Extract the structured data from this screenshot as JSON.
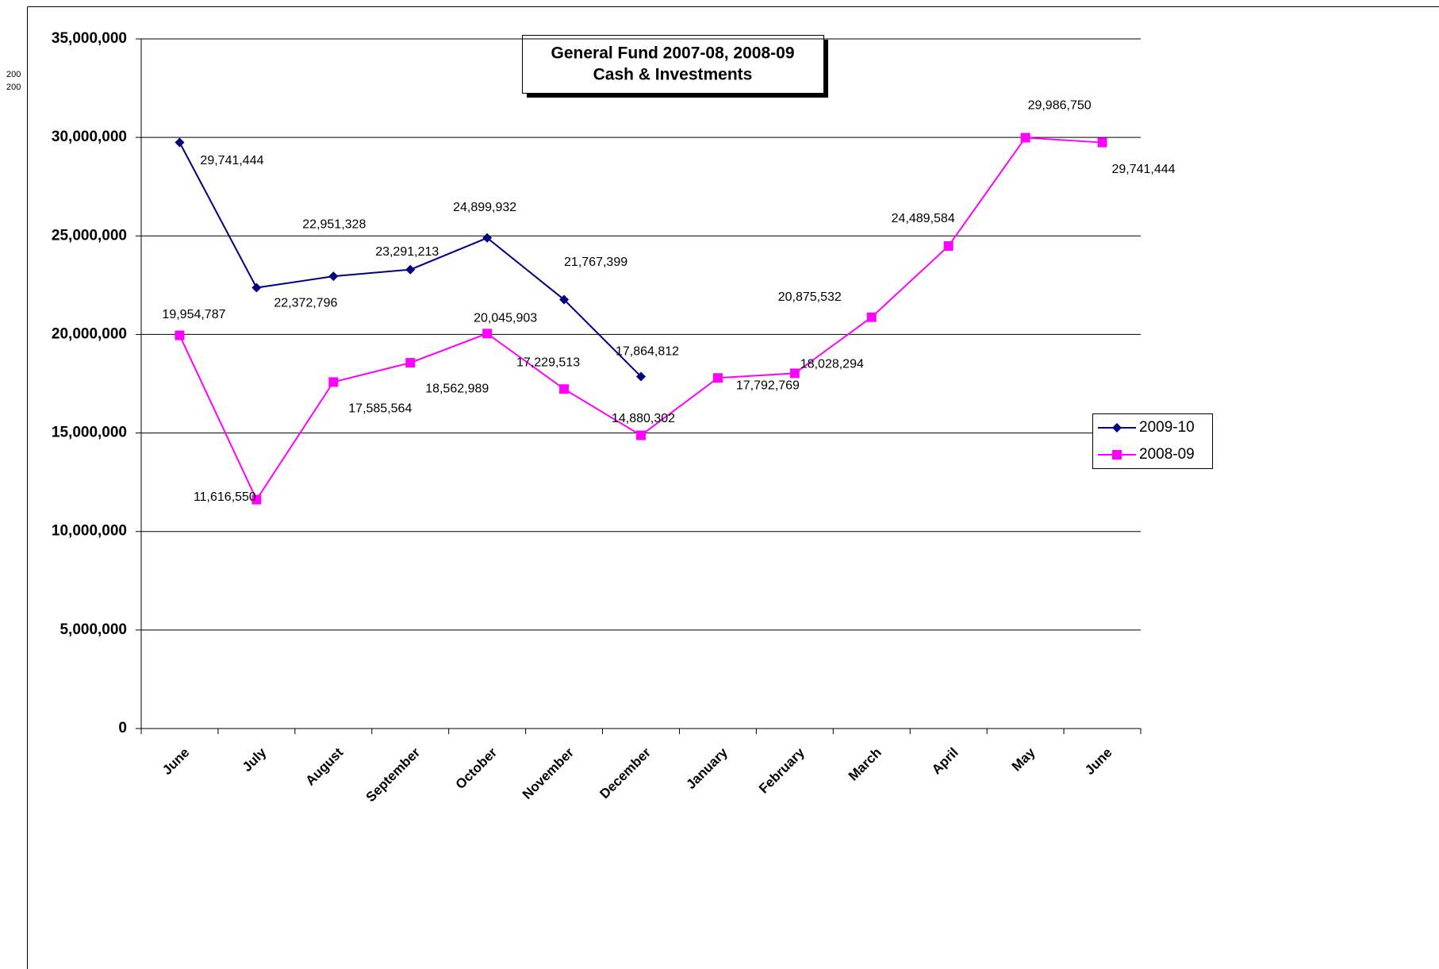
{
  "chart_data": {
    "type": "line",
    "title": "General Fund 2007-08, 2008-09",
    "subtitle": "Cash & Investments",
    "annotations": [
      "200",
      "200"
    ],
    "categories": [
      "June",
      "July",
      "August",
      "September",
      "October",
      "November",
      "December",
      "January",
      "February",
      "March",
      "April",
      "May",
      "June"
    ],
    "series": [
      {
        "name": "2009-10",
        "color": "#000080",
        "marker": "diamond",
        "values": [
          29741444,
          22372796,
          22951328,
          23291213,
          24899932,
          21767399,
          17864812,
          null,
          null,
          null,
          null,
          null,
          null
        ],
        "value_labels": [
          "29,741,444",
          "22,372,796",
          "22,951,328",
          "23,291,213",
          "24,899,932",
          "21,767,399",
          "17,864,812",
          null,
          null,
          null,
          null,
          null,
          null
        ]
      },
      {
        "name": "2008-09",
        "color": "#ff00ff",
        "marker": "square",
        "values": [
          19954787,
          11616550,
          17585564,
          18562989,
          20045903,
          17229513,
          14880302,
          17792769,
          18028294,
          20875532,
          24489584,
          29986750,
          29741444
        ],
        "value_labels": [
          "19,954,787",
          "11,616,550",
          "17,585,564",
          "18,562,989",
          "20,045,903",
          "17,229,513",
          "14,880,302",
          "17,792,769",
          "18,028,294",
          "20,875,532",
          "24,489,584",
          "29,986,750",
          "29,741,444"
        ]
      }
    ],
    "ylim": [
      0,
      35000000
    ],
    "yticks": [
      0,
      {
        "value": 5000000,
        "label": "5,000,000"
      },
      {
        "value": 10000000,
        "label": "10,000,000"
      },
      {
        "value": 15000000,
        "label": "15,000,000"
      },
      {
        "value": 20000000,
        "label": "20,000,000"
      },
      {
        "value": 25000000,
        "label": "25,000,000"
      },
      {
        "value": 30000000,
        "label": "30,000,000"
      },
      {
        "value": 35000000,
        "label": "35,000,000"
      }
    ],
    "grid": true,
    "legend": "right"
  }
}
